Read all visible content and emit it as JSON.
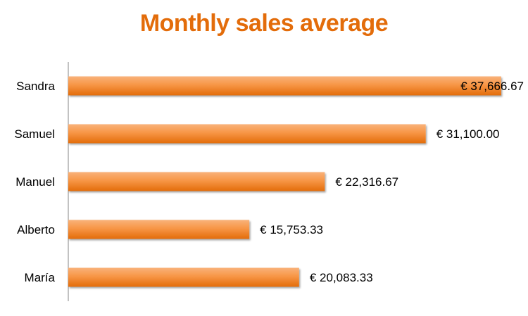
{
  "chart_data": {
    "type": "bar",
    "orientation": "horizontal",
    "title": "Monthly sales average",
    "categories": [
      "Sandra",
      "Samuel",
      "Manuel",
      "Alberto",
      "María"
    ],
    "values": [
      37666.67,
      31100.0,
      22316.67,
      15753.33,
      20083.33
    ],
    "value_labels": [
      "€ 37,666.67",
      "€ 31,100.00",
      "€ 22,316.67",
      "€ 15,753.33",
      "€ 20,083.33"
    ],
    "xlim": [
      0,
      40000
    ],
    "grid": false,
    "legend": "none",
    "xlabel": "",
    "ylabel": ""
  },
  "colors": {
    "title": "#e36c0a",
    "bar_top": "#f9b27a",
    "bar_mid": "#f79646",
    "bar_bottom": "#e36c0a",
    "axis": "#868686"
  }
}
